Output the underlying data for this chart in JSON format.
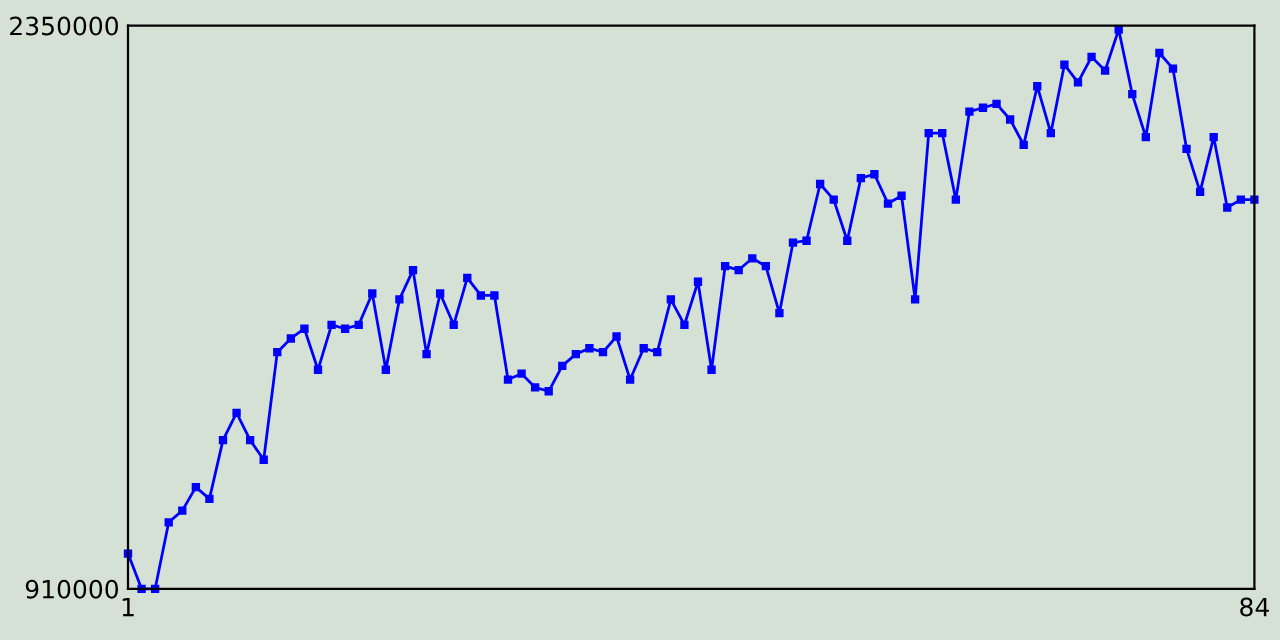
{
  "chart_data": {
    "type": "line",
    "x": [
      1,
      2,
      3,
      4,
      5,
      6,
      7,
      8,
      9,
      10,
      11,
      12,
      13,
      14,
      15,
      16,
      17,
      18,
      19,
      20,
      21,
      22,
      23,
      24,
      25,
      26,
      27,
      28,
      29,
      30,
      31,
      32,
      33,
      34,
      35,
      36,
      37,
      38,
      39,
      40,
      41,
      42,
      43,
      44,
      45,
      46,
      47,
      48,
      49,
      50,
      51,
      52,
      53,
      54,
      55,
      56,
      57,
      58,
      59,
      60,
      61,
      62,
      63,
      64,
      65,
      66,
      67,
      68,
      69,
      70,
      71,
      72,
      73,
      74,
      75,
      76,
      77,
      78,
      79,
      80,
      81,
      82,
      83,
      84
    ],
    "series": [
      {
        "color": "#0000ff",
        "values": [
          1000000,
          910000,
          910000,
          1080000,
          1110000,
          1170000,
          1140000,
          1290000,
          1360000,
          1290000,
          1240000,
          1515000,
          1550000,
          1575000,
          1470000,
          1585000,
          1575000,
          1585000,
          1665000,
          1470000,
          1650000,
          1725000,
          1510000,
          1665000,
          1585000,
          1705000,
          1660000,
          1660000,
          1445000,
          1460000,
          1425000,
          1415000,
          1480000,
          1510000,
          1525000,
          1515000,
          1555000,
          1445000,
          1525000,
          1515000,
          1650000,
          1585000,
          1695000,
          1470000,
          1735000,
          1725000,
          1755000,
          1735000,
          1615000,
          1795000,
          1800000,
          1945000,
          1905000,
          1800000,
          1960000,
          1970000,
          1895000,
          1915000,
          1650000,
          2075000,
          2075000,
          1905000,
          2130000,
          2140000,
          2150000,
          2110000,
          2045000,
          2195000,
          2075000,
          2250000,
          2205000,
          2270000,
          2235000,
          2340000,
          2175000,
          2065000,
          2280000,
          2240000,
          2035000,
          1925000,
          2065000,
          1885000,
          1905000,
          1905000
        ]
      }
    ],
    "xlim": [
      1,
      84
    ],
    "xticks": [
      1,
      84
    ],
    "ylim": [
      910000,
      2350000
    ],
    "yticks": [
      910000,
      2350000
    ],
    "marker": "square",
    "line_style": "solid",
    "grid": false,
    "legend": false
  }
}
